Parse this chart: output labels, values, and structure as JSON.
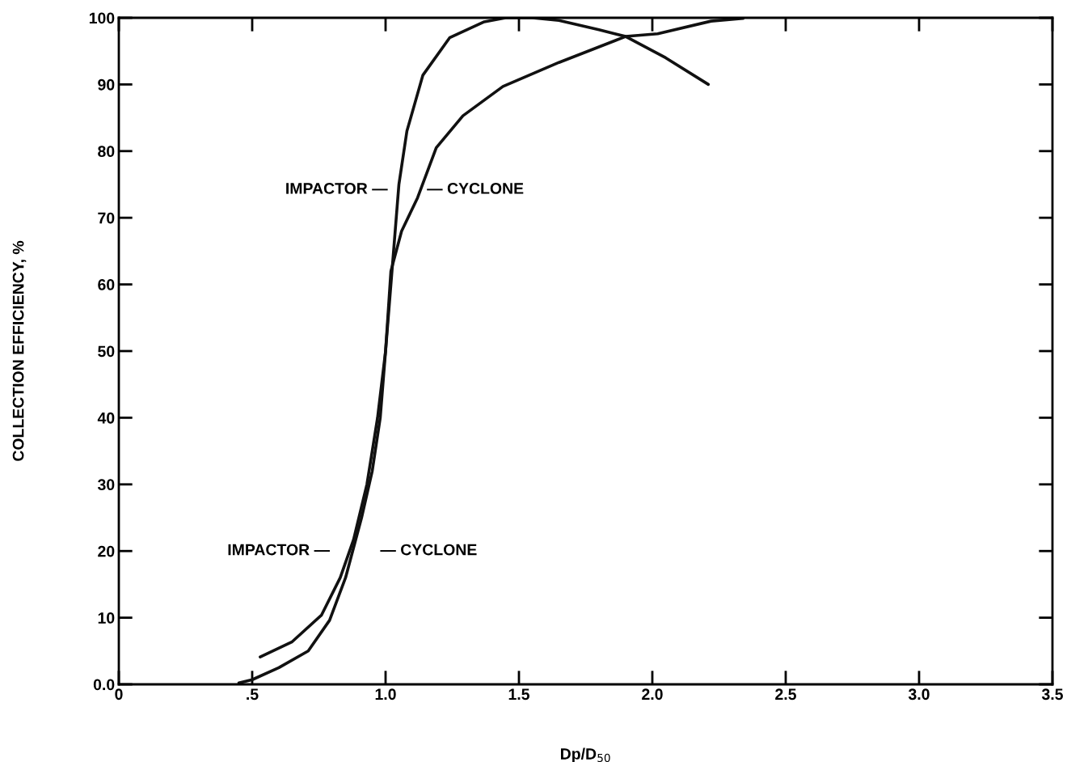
{
  "chart_data": {
    "type": "line",
    "xlabel": "Dp/D$_{50}$",
    "ylabel": "COLLECTION EFFICIENCY, %",
    "series": [
      {
        "color": "#111111",
        "x": [
          0.45,
          0.5,
          0.6,
          0.71,
          0.79,
          0.85,
          0.91,
          0.95,
          0.98,
          1.0,
          1.02,
          1.05,
          1.08,
          1.14,
          1.24,
          1.37,
          1.45,
          1.55,
          1.65,
          1.8,
          1.9,
          2.05,
          2.21
        ],
        "values": [
          0.2,
          0.7,
          2.5,
          5,
          9.6,
          16,
          25,
          32,
          40,
          50,
          60,
          75,
          83,
          91.4,
          97,
          99.4,
          100,
          100,
          99.6,
          98.2,
          97.2,
          94,
          90
        ]
      },
      {
        "color": "#111111",
        "x": [
          0.53,
          0.65,
          0.76,
          0.83,
          0.88,
          0.93,
          0.97,
          1.0,
          1.02,
          1.06,
          1.12,
          1.19,
          1.29,
          1.44,
          1.65,
          1.9,
          2.02,
          2.22,
          2.34
        ],
        "values": [
          4.1,
          6.4,
          10.4,
          16,
          21.7,
          30,
          40,
          50,
          62,
          68,
          73,
          80.5,
          85.3,
          89.7,
          93.3,
          97.2,
          97.6,
          99.5,
          99.9
        ]
      }
    ],
    "annotations": [
      "IMPACTOR —",
      "— CYCLONE",
      "IMPACTOR —",
      "— CYCLONE"
    ],
    "xlim": [
      0,
      3.5
    ],
    "ylim": [
      0,
      100
    ],
    "xticks": [
      0,
      {
        "value": 0.5,
        "label": ".5"
      },
      {
        "value": 1.0,
        "label": "1.0"
      },
      {
        "value": 1.5,
        "label": "1.5"
      },
      {
        "value": 2.0,
        "label": "2.0"
      },
      {
        "value": 2.5,
        "label": "2.5"
      },
      {
        "value": 3.0,
        "label": "3.0"
      },
      {
        "value": 3.5,
        "label": "3.5"
      }
    ],
    "yticks": [
      {
        "value": 0,
        "label": "0.0"
      },
      10,
      20,
      30,
      40,
      50,
      60,
      70,
      80,
      90,
      100
    ],
    "grid": false,
    "legend": false,
    "marker": "none",
    "line_style": "solid"
  }
}
